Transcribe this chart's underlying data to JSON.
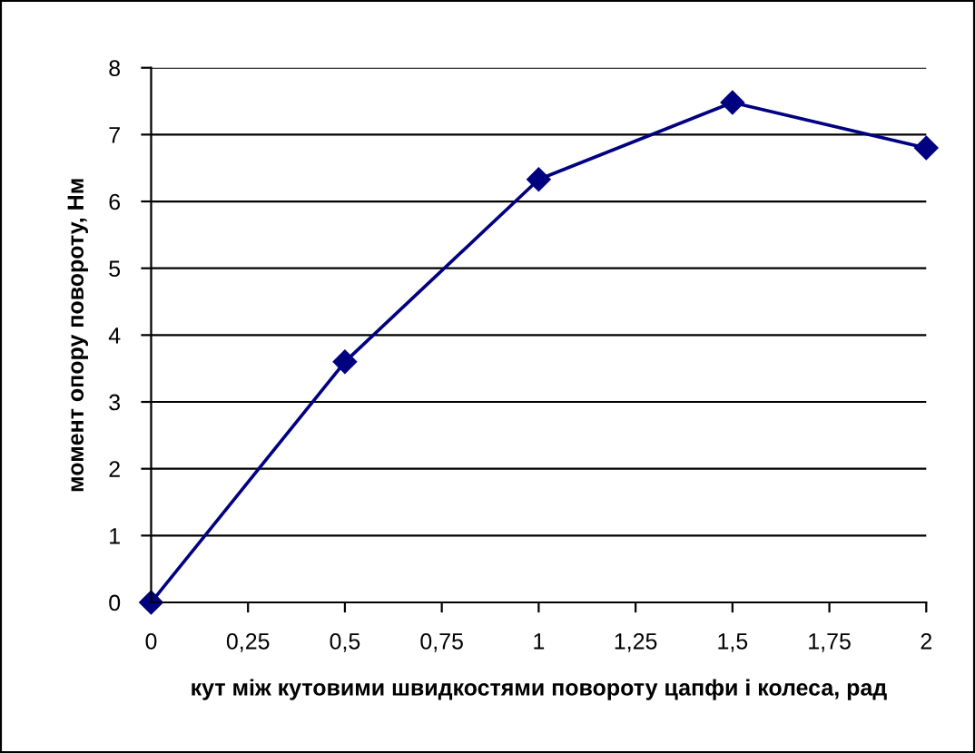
{
  "chart_data": {
    "type": "line",
    "xlabel": "кут між кутовими швидкостями повороту цапфи і колеса, рад",
    "ylabel": "момент опору повороту, Нм",
    "x": [
      0,
      0.5,
      1,
      1.5,
      2
    ],
    "series": [
      {
        "color": "#000080",
        "values": [
          0,
          3.6,
          6.33,
          7.48,
          6.8
        ]
      }
    ],
    "xlim": [
      0,
      2
    ],
    "xticks": [
      0,
      {
        "value": 0.25,
        "label": "0,25"
      },
      {
        "value": 0.5,
        "label": "0,5"
      },
      {
        "value": 0.75,
        "label": "0,75"
      },
      1,
      {
        "value": 1.25,
        "label": "1,25"
      },
      {
        "value": 1.5,
        "label": "1,5"
      },
      {
        "value": 1.75,
        "label": "1,75"
      },
      2
    ],
    "ylim": [
      0,
      8
    ],
    "yticks": [
      0,
      1,
      2,
      3,
      4,
      5,
      6,
      7,
      8
    ],
    "grid": "y",
    "marker": "diamond",
    "line_style": "solid"
  }
}
